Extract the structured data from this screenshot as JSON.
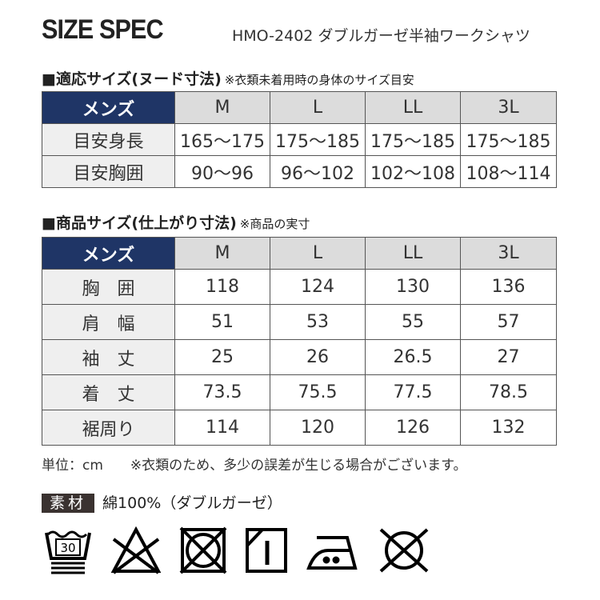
{
  "title": "SIZE SPEC",
  "product": "HMO-2402 ダブルガーゼ半袖ワークシャツ",
  "nude": {
    "heading": "■適応サイズ(ヌード寸法)",
    "note": "※衣類未着用時の身体のサイズ目安",
    "header": [
      "メンズ",
      "M",
      "L",
      "LL",
      "3L"
    ],
    "rows": [
      [
        "目安身長",
        "165〜175",
        "175〜185",
        "175〜185",
        "175〜185"
      ],
      [
        "目安胸囲",
        "90〜96",
        "96〜102",
        "102〜108",
        "108〜114"
      ]
    ]
  },
  "product_size": {
    "heading": "■商品サイズ(仕上がり寸法)",
    "note": "※商品の実寸",
    "header": [
      "メンズ",
      "M",
      "L",
      "LL",
      "3L"
    ],
    "rows": [
      [
        "胸　囲",
        "118",
        "124",
        "130",
        "136"
      ],
      [
        "肩　幅",
        "51",
        "53",
        "55",
        "57"
      ],
      [
        "袖　丈",
        "25",
        "26",
        "26.5",
        "27"
      ],
      [
        "着　丈",
        "73.5",
        "75.5",
        "77.5",
        "78.5"
      ],
      [
        "裾周り",
        "114",
        "120",
        "126",
        "132"
      ]
    ]
  },
  "unit": "単位：cm",
  "disclaimer": "※衣類のため、多少の誤差が生じる場合がございます。",
  "material": {
    "label": "素材",
    "value": "綿100%（ダブルガーゼ）"
  },
  "care": {
    "wash_temp": "30",
    "icons": [
      "wash-30-icon",
      "no-bleach-icon",
      "no-tumble-dry-icon",
      "line-dry-shade-icon",
      "iron-medium-icon",
      "no-dry-clean-icon"
    ]
  },
  "colors": {
    "header": "#1f3566",
    "size_cell": "#dcdcdc",
    "label_cell": "#efefef"
  }
}
